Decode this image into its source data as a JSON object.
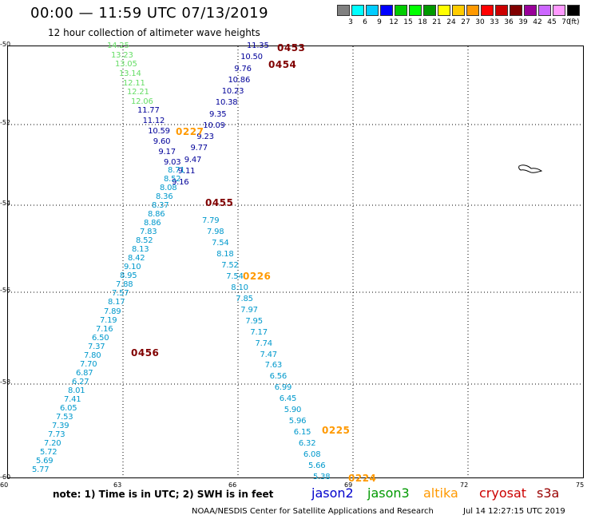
{
  "title": "00:00 — 11:59 UTC 07/13/2019",
  "subtitle": "12 hour collection of altimeter wave heights",
  "legend": {
    "colors": [
      "#808080",
      "#00ffff",
      "#00ccff",
      "#0000ff",
      "#00cc00",
      "#00ff00",
      "#009900",
      "#ffff00",
      "#ffcc00",
      "#ff9900",
      "#ff0000",
      "#cc0000",
      "#800000",
      "#990099",
      "#cc66ff",
      "#ff99ff",
      "#000000"
    ],
    "labels": [
      "3",
      "6",
      "9",
      "12",
      "15",
      "18",
      "21",
      "24",
      "27",
      "30",
      "33",
      "36",
      "39",
      "42",
      "45",
      "70",
      "(ft)"
    ]
  },
  "axes": {
    "lat_ticks": [
      "-50",
      "-52",
      "-54",
      "-56",
      "-58",
      "-60"
    ],
    "lon_ticks": [
      "60",
      "63",
      "66",
      "69",
      "72",
      "75"
    ]
  },
  "tracks": [
    {
      "color": "#66dd66",
      "points": [
        "14.25",
        "13.23",
        "13.05",
        "13.14",
        "12.11",
        "12.21",
        "12.06"
      ]
    },
    {
      "color": "#000099",
      "points": [
        "11.77",
        "11.12",
        "10.59",
        "9.60",
        "9.17",
        "9.03"
      ]
    },
    {
      "color": "#000099",
      "points": [
        "11.35",
        "10.50",
        "9.76",
        "10.86",
        "10.23",
        "10.38",
        "9.35",
        "10.09",
        "9.23",
        "9.77",
        "9.47",
        "9.11",
        "9.16"
      ]
    },
    {
      "color": "#0099cc",
      "points": [
        "8.71",
        "8.52",
        "8.08",
        "8.36",
        "8.37",
        "8.86",
        "8.86",
        "7.83",
        "8.52",
        "8.13",
        "8.42",
        "9.10",
        "8.95",
        "7.88",
        "7.57",
        "8.17",
        "7.89",
        "7.19",
        "7.16",
        "6.50",
        "7.37",
        "7.80",
        "7.70",
        "6.87",
        "6.27",
        "8.01",
        "7.41",
        "6.05",
        "7.53",
        "7.39",
        "7.73",
        "7.20",
        "5.72",
        "5.69",
        "5.77"
      ]
    },
    {
      "color": "#0099cc",
      "points": [
        "7.79",
        "7.98",
        "7.54",
        "8.18",
        "7.52",
        "7.54",
        "8.10",
        "7.85",
        "7.97",
        "7.95",
        "7.17",
        "7.74",
        "7.47",
        "7.63",
        "6.56",
        "6.99",
        "6.45",
        "5.90",
        "5.96",
        "6.15",
        "6.32",
        "6.08",
        "5.66",
        "5.38"
      ]
    }
  ],
  "passes": [
    {
      "label": "0453",
      "color": "#800000"
    },
    {
      "label": "0454",
      "color": "#800000"
    },
    {
      "label": "0227",
      "color": "#ff9900"
    },
    {
      "label": "0455",
      "color": "#800000"
    },
    {
      "label": "0226",
      "color": "#ff9900"
    },
    {
      "label": "0456",
      "color": "#800000"
    },
    {
      "label": "0225",
      "color": "#ff9900"
    },
    {
      "label": "0224",
      "color": "#ff9900"
    }
  ],
  "footer": {
    "note": "note: 1) Time is in UTC; 2) SWH is in feet",
    "satellites": [
      {
        "name": "jason2",
        "color": "#0000cc"
      },
      {
        "name": "jason3",
        "color": "#009900"
      },
      {
        "name": "altika",
        "color": "#ff9900"
      },
      {
        "name": "cryosat",
        "color": "#cc0000"
      },
      {
        "name": "s3a",
        "color": "#990000"
      }
    ],
    "credit": "NOAA/NESDIS Center for Satellite Applications and Research",
    "timestamp": "Jul 14 12:27:15 UTC 2019"
  }
}
